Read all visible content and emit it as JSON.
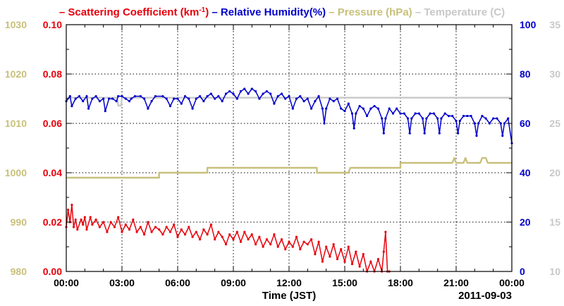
{
  "chart_data": {
    "type": "line",
    "legend_placement": "top",
    "legend": [
      {
        "key": "scat",
        "prefix": "– ",
        "text": "Scattering Coefficient (km",
        "sup": "-1",
        "suffix": ")",
        "color": "#e8000b"
      },
      {
        "key": "rh",
        "prefix": "– ",
        "text": "Relative Humidity(%)",
        "color": "#0000cc"
      },
      {
        "key": "pres",
        "prefix": "– ",
        "text": "Pressure (hPa)",
        "color": "#c8c07a"
      },
      {
        "key": "temp",
        "prefix": "– ",
        "text": "Temperature (",
        "suffix": "C)",
        "color": "#c8c8c8"
      }
    ],
    "xlabel": "Time (JST)",
    "date_label": "2011-09-03",
    "grid": true,
    "x_ticks": [
      "00:00",
      "03:00",
      "06:00",
      "09:00",
      "12:00",
      "15:00",
      "18:00",
      "21:00",
      "00:00"
    ],
    "x_range_hours": [
      0,
      24
    ],
    "axes": {
      "pressure": {
        "side": "left-outer",
        "range": [
          980,
          1030
        ],
        "ticks": [
          "980",
          "990",
          "1000",
          "1010",
          "1020",
          "1030"
        ],
        "color": "#c8c07a"
      },
      "scattering": {
        "side": "left-inner",
        "range": [
          0,
          0.1
        ],
        "ticks": [
          "0.00",
          "0.02",
          "0.04",
          "0.06",
          "0.08",
          "0.10"
        ],
        "color": "#e8000b"
      },
      "humidity": {
        "side": "right-inner",
        "range": [
          0,
          100
        ],
        "ticks": [
          "0",
          "20",
          "40",
          "60",
          "80",
          "100"
        ],
        "color": "#0000cc"
      },
      "temperature": {
        "side": "right-outer",
        "range": [
          10,
          35
        ],
        "ticks": [
          "10",
          "15",
          "20",
          "25",
          "30",
          "35"
        ],
        "color": "#c8c8c8"
      }
    },
    "series": {
      "temperature": {
        "color": "#c8c8c8",
        "points": [
          [
            0,
            27.6
          ],
          [
            2.75,
            27.6
          ],
          [
            2.8,
            26.8
          ],
          [
            2.95,
            26.8
          ],
          [
            3.0,
            27.6
          ],
          [
            24,
            27.6
          ]
        ]
      },
      "pressure": {
        "color": "#c8c07a",
        "points": [
          [
            0,
            999
          ],
          [
            5.0,
            999
          ],
          [
            5.0,
            1000
          ],
          [
            7.6,
            1000
          ],
          [
            7.6,
            1001
          ],
          [
            13.5,
            1001
          ],
          [
            13.5,
            1000
          ],
          [
            15.2,
            1000
          ],
          [
            15.3,
            1001
          ],
          [
            18.0,
            1001
          ],
          [
            18.0,
            1002
          ],
          [
            20.8,
            1002
          ],
          [
            20.9,
            1003
          ],
          [
            21.0,
            1002
          ],
          [
            21.4,
            1002
          ],
          [
            21.5,
            1003
          ],
          [
            21.6,
            1002
          ],
          [
            22.3,
            1002
          ],
          [
            22.4,
            1003
          ],
          [
            22.6,
            1003
          ],
          [
            22.7,
            1002
          ],
          [
            24,
            1002
          ]
        ]
      },
      "humidity": {
        "color": "#0000cc",
        "points": [
          [
            0,
            69
          ],
          [
            0.2,
            71
          ],
          [
            0.3,
            67
          ],
          [
            0.5,
            70
          ],
          [
            0.7,
            71
          ],
          [
            0.9,
            69
          ],
          [
            1.1,
            71
          ],
          [
            1.2,
            66
          ],
          [
            1.4,
            70
          ],
          [
            1.6,
            71
          ],
          [
            1.8,
            69
          ],
          [
            2.0,
            70
          ],
          [
            2.1,
            65
          ],
          [
            2.3,
            70
          ],
          [
            2.5,
            70
          ],
          [
            2.7,
            69
          ],
          [
            2.8,
            71
          ],
          [
            3.0,
            71
          ],
          [
            3.2,
            70
          ],
          [
            3.4,
            69
          ],
          [
            3.5,
            70
          ],
          [
            3.7,
            71
          ],
          [
            4.0,
            71
          ],
          [
            4.2,
            70
          ],
          [
            4.4,
            66
          ],
          [
            4.6,
            69
          ],
          [
            4.8,
            71
          ],
          [
            5.2,
            71
          ],
          [
            5.4,
            70
          ],
          [
            5.6,
            67
          ],
          [
            5.8,
            70
          ],
          [
            6.0,
            70
          ],
          [
            6.2,
            68
          ],
          [
            6.4,
            71
          ],
          [
            6.6,
            70
          ],
          [
            6.8,
            66
          ],
          [
            7.0,
            70
          ],
          [
            7.2,
            71
          ],
          [
            7.4,
            69
          ],
          [
            7.6,
            71
          ],
          [
            7.8,
            72
          ],
          [
            8.0,
            70
          ],
          [
            8.2,
            71
          ],
          [
            8.4,
            69
          ],
          [
            8.6,
            72
          ],
          [
            8.8,
            73
          ],
          [
            9.0,
            72
          ],
          [
            9.2,
            70
          ],
          [
            9.4,
            73
          ],
          [
            9.6,
            74
          ],
          [
            9.8,
            72
          ],
          [
            10.0,
            74
          ],
          [
            10.2,
            73
          ],
          [
            10.4,
            70
          ],
          [
            10.6,
            72
          ],
          [
            10.8,
            73
          ],
          [
            11.0,
            72
          ],
          [
            11.2,
            68
          ],
          [
            11.4,
            71
          ],
          [
            11.6,
            72
          ],
          [
            11.8,
            70
          ],
          [
            12.0,
            71
          ],
          [
            12.2,
            66
          ],
          [
            12.4,
            70
          ],
          [
            12.6,
            71
          ],
          [
            12.8,
            69
          ],
          [
            13.0,
            70
          ],
          [
            13.2,
            66
          ],
          [
            13.4,
            69
          ],
          [
            13.6,
            71
          ],
          [
            13.8,
            66
          ],
          [
            13.9,
            60
          ],
          [
            14.0,
            66
          ],
          [
            14.2,
            70
          ],
          [
            14.4,
            69
          ],
          [
            14.6,
            70
          ],
          [
            14.8,
            66
          ],
          [
            15.0,
            65
          ],
          [
            15.2,
            68
          ],
          [
            15.4,
            64
          ],
          [
            15.5,
            58
          ],
          [
            15.6,
            64
          ],
          [
            15.8,
            67
          ],
          [
            16.0,
            66
          ],
          [
            16.2,
            63
          ],
          [
            16.4,
            66
          ],
          [
            16.6,
            67
          ],
          [
            16.8,
            66
          ],
          [
            17.0,
            62
          ],
          [
            17.1,
            56
          ],
          [
            17.2,
            62
          ],
          [
            17.4,
            66
          ],
          [
            17.6,
            64
          ],
          [
            17.8,
            66
          ],
          [
            18.0,
            64
          ],
          [
            18.2,
            64
          ],
          [
            18.4,
            62
          ],
          [
            18.5,
            56
          ],
          [
            18.6,
            62
          ],
          [
            18.8,
            64
          ],
          [
            19.0,
            64
          ],
          [
            19.2,
            62
          ],
          [
            19.3,
            56
          ],
          [
            19.4,
            62
          ],
          [
            19.6,
            64
          ],
          [
            19.8,
            64
          ],
          [
            20.0,
            62
          ],
          [
            20.1,
            56
          ],
          [
            20.2,
            62
          ],
          [
            20.4,
            64
          ],
          [
            20.6,
            63
          ],
          [
            20.8,
            63
          ],
          [
            21.0,
            61
          ],
          [
            21.1,
            56
          ],
          [
            21.2,
            61
          ],
          [
            21.4,
            63
          ],
          [
            21.6,
            63
          ],
          [
            21.8,
            63
          ],
          [
            22.0,
            60
          ],
          [
            22.1,
            55
          ],
          [
            22.2,
            60
          ],
          [
            22.4,
            63
          ],
          [
            22.6,
            62
          ],
          [
            22.8,
            60
          ],
          [
            23.0,
            62
          ],
          [
            23.2,
            62
          ],
          [
            23.4,
            60
          ],
          [
            23.5,
            55
          ],
          [
            23.6,
            60
          ],
          [
            23.8,
            62
          ],
          [
            24,
            52
          ]
        ]
      },
      "scattering": {
        "color": "#e8000b",
        "points": [
          [
            0,
            0.018
          ],
          [
            0.1,
            0.025
          ],
          [
            0.2,
            0.02
          ],
          [
            0.3,
            0.027
          ],
          [
            0.4,
            0.018
          ],
          [
            0.5,
            0.021
          ],
          [
            0.6,
            0.017
          ],
          [
            0.8,
            0.021
          ],
          [
            0.9,
            0.019
          ],
          [
            1.0,
            0.022
          ],
          [
            1.1,
            0.017
          ],
          [
            1.3,
            0.022
          ],
          [
            1.4,
            0.019
          ],
          [
            1.6,
            0.021
          ],
          [
            1.8,
            0.018
          ],
          [
            2.0,
            0.02
          ],
          [
            2.2,
            0.016
          ],
          [
            2.4,
            0.02
          ],
          [
            2.6,
            0.018
          ],
          [
            2.8,
            0.022
          ],
          [
            3.0,
            0.016
          ],
          [
            3.2,
            0.019
          ],
          [
            3.4,
            0.017
          ],
          [
            3.6,
            0.021
          ],
          [
            3.8,
            0.016
          ],
          [
            4.0,
            0.018
          ],
          [
            4.2,
            0.015
          ],
          [
            4.4,
            0.02
          ],
          [
            4.6,
            0.016
          ],
          [
            4.8,
            0.018
          ],
          [
            5.0,
            0.017
          ],
          [
            5.2,
            0.015
          ],
          [
            5.4,
            0.018
          ],
          [
            5.6,
            0.016
          ],
          [
            5.8,
            0.019
          ],
          [
            6.0,
            0.014
          ],
          [
            6.2,
            0.017
          ],
          [
            6.4,
            0.015
          ],
          [
            6.6,
            0.018
          ],
          [
            6.8,
            0.014
          ],
          [
            7.0,
            0.016
          ],
          [
            7.2,
            0.013
          ],
          [
            7.4,
            0.017
          ],
          [
            7.6,
            0.015
          ],
          [
            7.8,
            0.019
          ],
          [
            8.0,
            0.013
          ],
          [
            8.2,
            0.016
          ],
          [
            8.4,
            0.014
          ],
          [
            8.6,
            0.011
          ],
          [
            8.8,
            0.015
          ],
          [
            9.0,
            0.013
          ],
          [
            9.2,
            0.016
          ],
          [
            9.4,
            0.012
          ],
          [
            9.6,
            0.016
          ],
          [
            9.8,
            0.013
          ],
          [
            10.0,
            0.015
          ],
          [
            10.2,
            0.011
          ],
          [
            10.4,
            0.014
          ],
          [
            10.6,
            0.01
          ],
          [
            10.8,
            0.013
          ],
          [
            11.0,
            0.011
          ],
          [
            11.2,
            0.015
          ],
          [
            11.4,
            0.01
          ],
          [
            11.6,
            0.013
          ],
          [
            11.8,
            0.009
          ],
          [
            12.0,
            0.012
          ],
          [
            12.2,
            0.01
          ],
          [
            12.4,
            0.014
          ],
          [
            12.6,
            0.009
          ],
          [
            12.8,
            0.012
          ],
          [
            13.0,
            0.011
          ],
          [
            13.2,
            0.013
          ],
          [
            13.4,
            0.007
          ],
          [
            13.6,
            0.012
          ],
          [
            13.8,
            0.004
          ],
          [
            14.0,
            0.01
          ],
          [
            14.2,
            0.006
          ],
          [
            14.4,
            0.011
          ],
          [
            14.6,
            0.005
          ],
          [
            14.8,
            0.009
          ],
          [
            15.0,
            0.004
          ],
          [
            15.2,
            0.01
          ],
          [
            15.4,
            0.003
          ],
          [
            15.6,
            0.008
          ],
          [
            15.8,
            0.002
          ],
          [
            16.0,
            0.007
          ],
          [
            16.2,
            0.0
          ],
          [
            16.4,
            0.004
          ],
          [
            16.6,
            0.0
          ],
          [
            16.8,
            0.005
          ],
          [
            17.0,
            0.0
          ],
          [
            17.1,
            0.008
          ],
          [
            17.2,
            0.016
          ],
          [
            17.3,
            0.0
          ],
          [
            17.4,
            0.0
          ]
        ]
      }
    }
  }
}
